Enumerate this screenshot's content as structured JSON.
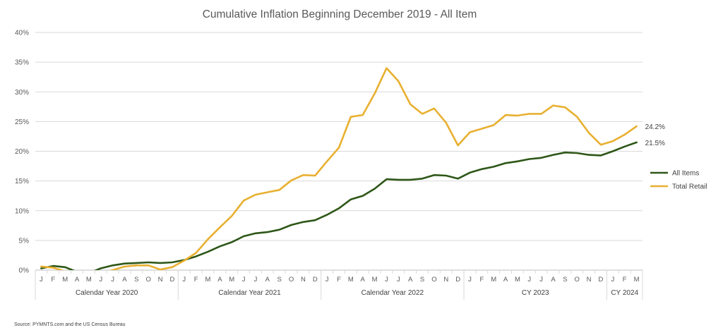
{
  "chart_data": {
    "type": "line",
    "title": "Cumulative Inflation Beginning December 2019 - All Item",
    "xlabel": "",
    "ylabel": "",
    "ylim": [
      0,
      40
    ],
    "yticks": [
      "0%",
      "5%",
      "10%",
      "15%",
      "20%",
      "25%",
      "30%",
      "35%",
      "40%"
    ],
    "grid": "horizontal",
    "legend_position": "right",
    "x": [
      "J",
      "F",
      "M",
      "A",
      "M",
      "J",
      "J",
      "A",
      "S",
      "O",
      "N",
      "D",
      "J",
      "F",
      "M",
      "A",
      "M",
      "J",
      "J",
      "A",
      "S",
      "O",
      "N",
      "D",
      "J",
      "F",
      "M",
      "A",
      "M",
      "J",
      "J",
      "A",
      "S",
      "O",
      "N",
      "D",
      "J",
      "F",
      "M",
      "A",
      "M",
      "J",
      "J",
      "A",
      "S",
      "O",
      "N",
      "D",
      "J",
      "F",
      "M"
    ],
    "groups": [
      {
        "label": "Calendar Year 2020",
        "count": 12
      },
      {
        "label": "Calendar Year 2021",
        "count": 12
      },
      {
        "label": "Calendar Year 2022",
        "count": 12
      },
      {
        "label": "CY 2023",
        "count": 12
      },
      {
        "label": "CY 2024",
        "count": 3
      }
    ],
    "series": [
      {
        "name": "All Items",
        "color": "#2e5718",
        "values": [
          0.3,
          0.7,
          0.5,
          -0.3,
          -0.5,
          0.3,
          0.8,
          1.1,
          1.2,
          1.3,
          1.2,
          1.3,
          1.7,
          2.3,
          3.1,
          4.0,
          4.7,
          5.7,
          6.2,
          6.4,
          6.8,
          7.6,
          8.1,
          8.4,
          9.3,
          10.4,
          11.9,
          12.5,
          13.7,
          15.3,
          15.2,
          15.2,
          15.4,
          16.0,
          15.9,
          15.4,
          16.4,
          17.0,
          17.4,
          18.0,
          18.3,
          18.7,
          18.9,
          19.4,
          19.8,
          19.7,
          19.4,
          19.3,
          20.0,
          20.8,
          21.5
        ],
        "end_label": "21.5%"
      },
      {
        "name": "Total Retail",
        "color": "#e8b030",
        "values": [
          0.6,
          0.4,
          -0.2,
          -1.5,
          -1.2,
          -0.5,
          0.0,
          0.6,
          0.8,
          0.8,
          0.1,
          0.5,
          1.6,
          2.9,
          5.2,
          7.2,
          9.1,
          11.7,
          12.7,
          13.1,
          13.5,
          15.1,
          16.0,
          15.9,
          18.3,
          20.6,
          25.8,
          26.1,
          29.7,
          34.0,
          31.8,
          27.9,
          26.3,
          27.2,
          24.8,
          21.0,
          23.2,
          23.8,
          24.4,
          26.1,
          26.0,
          26.3,
          26.3,
          27.7,
          27.4,
          25.8,
          23.1,
          21.1,
          21.7,
          22.8,
          24.2
        ],
        "end_label": "24.2%"
      }
    ],
    "source": "Source: PYMNTS.com and the US Census Bureau"
  }
}
